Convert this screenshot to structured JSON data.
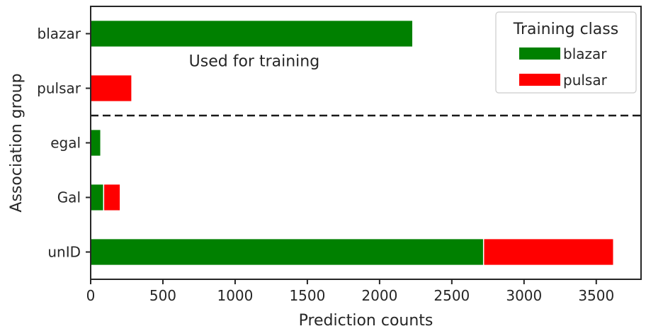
{
  "chart_data": {
    "type": "bar",
    "orientation": "horizontal",
    "stacked": true,
    "categories": [
      "blazar",
      "pulsar",
      "egal",
      "Gal",
      "unID"
    ],
    "series": [
      {
        "name": "blazar",
        "color": "#008000",
        "values": [
          2230,
          0,
          70,
          90,
          2720
        ]
      },
      {
        "name": "pulsar",
        "color": "#ff0000",
        "values": [
          0,
          285,
          0,
          115,
          900
        ]
      }
    ],
    "title": "",
    "xlabel": "Prediction counts",
    "ylabel": "Association group",
    "xlim": [
      0,
      3810
    ],
    "xticks": [
      0,
      500,
      1000,
      1500,
      2000,
      2500,
      3000,
      3500
    ],
    "legend": {
      "title": "Training class",
      "placement": "top-right"
    },
    "annotations": [
      {
        "text": "Used for training"
      }
    ],
    "separator": {
      "style": "dashed",
      "between": [
        "pulsar",
        "egal"
      ]
    },
    "grid": false
  }
}
